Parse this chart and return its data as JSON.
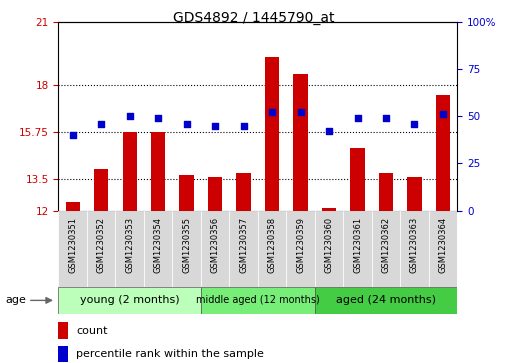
{
  "title": "GDS4892 / 1445790_at",
  "samples": [
    "GSM1230351",
    "GSM1230352",
    "GSM1230353",
    "GSM1230354",
    "GSM1230355",
    "GSM1230356",
    "GSM1230357",
    "GSM1230358",
    "GSM1230359",
    "GSM1230360",
    "GSM1230361",
    "GSM1230362",
    "GSM1230363",
    "GSM1230364"
  ],
  "counts": [
    12.4,
    14.0,
    15.75,
    15.75,
    13.7,
    13.6,
    13.8,
    19.3,
    18.5,
    12.1,
    15.0,
    13.8,
    13.6,
    17.5
  ],
  "percentiles": [
    40,
    46,
    50,
    49,
    46,
    45,
    45,
    52,
    52,
    42,
    49,
    49,
    46,
    51
  ],
  "ymin": 12,
  "ymax": 21,
  "yticks": [
    12,
    13.5,
    15.75,
    18,
    21
  ],
  "ytick_labels": [
    "12",
    "13.5",
    "15.75",
    "18",
    "21"
  ],
  "right_yticks": [
    0,
    25,
    50,
    75,
    100
  ],
  "right_ytick_labels": [
    "0",
    "25",
    "50",
    "75",
    "100%"
  ],
  "bar_color": "#cc0000",
  "dot_color": "#0000cc",
  "bar_bottom": 12,
  "groups": [
    {
      "label": "young (2 months)",
      "start": 0,
      "end": 5,
      "color": "#bbffbb"
    },
    {
      "label": "middle aged (12 months)",
      "start": 5,
      "end": 9,
      "color": "#77ee77"
    },
    {
      "label": "aged (24 months)",
      "start": 9,
      "end": 14,
      "color": "#44cc44"
    }
  ],
  "xlabel_age": "age",
  "legend_count_label": "count",
  "legend_pct_label": "percentile rank within the sample",
  "dotted_line_color": "#000000",
  "grid_lines": [
    13.5,
    15.75,
    18
  ],
  "bar_width": 0.5,
  "figure_bg": "#ffffff",
  "axes_bg": "#ffffff",
  "sample_bg": "#d8d8d8",
  "tick_label_color_left": "#cc0000",
  "tick_label_color_right": "#0000cc"
}
